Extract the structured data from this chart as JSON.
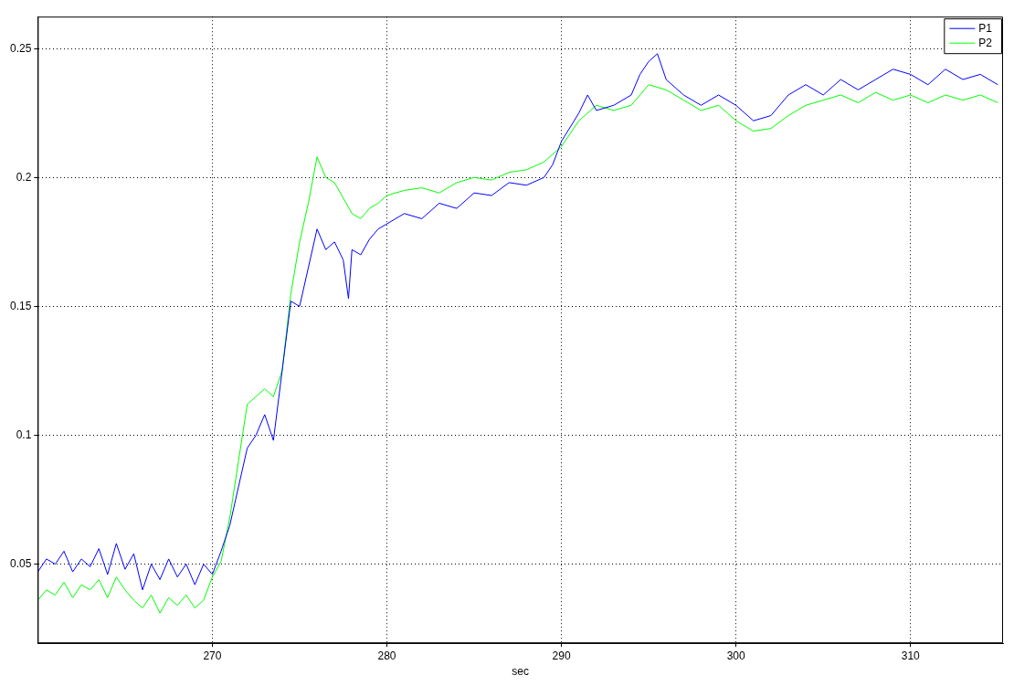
{
  "chart_data": {
    "type": "line",
    "xlabel": "sec",
    "xlim": [
      260,
      315.3
    ],
    "xticks": [
      270,
      280,
      290,
      300,
      310
    ],
    "ylim": [
      0.0193,
      0.2624
    ],
    "yticks": [
      0.05,
      0.1,
      0.15,
      0.2,
      0.25
    ],
    "grid": true,
    "legend": "top right",
    "marker": "none",
    "line_style": "solid",
    "series": [
      {
        "name": "P1",
        "color": "#0000ff",
        "x": [
          260,
          260.5,
          261,
          261.5,
          262,
          262.5,
          263,
          263.5,
          264,
          264.5,
          265,
          265.5,
          266,
          266.5,
          267,
          267.5,
          268,
          268.5,
          269,
          269.5,
          270,
          270.5,
          271,
          271.5,
          272,
          272.5,
          273,
          273.5,
          274,
          274.5,
          275,
          275.5,
          276,
          276.5,
          277,
          277.5,
          277.8,
          278,
          278.5,
          279,
          279.5,
          280,
          281,
          282,
          283,
          284,
          285,
          286,
          287,
          288,
          289,
          289.5,
          290,
          291,
          291.5,
          292,
          293,
          294,
          294.5,
          295,
          295.5,
          296,
          297,
          298,
          299,
          300,
          301,
          302,
          303,
          304,
          305,
          306,
          307,
          308,
          309,
          310,
          311,
          312,
          313,
          314,
          315
        ],
        "values": [
          0.047,
          0.052,
          0.05,
          0.055,
          0.047,
          0.052,
          0.049,
          0.056,
          0.046,
          0.058,
          0.048,
          0.054,
          0.04,
          0.05,
          0.044,
          0.052,
          0.045,
          0.05,
          0.042,
          0.05,
          0.046,
          0.055,
          0.065,
          0.08,
          0.095,
          0.1,
          0.108,
          0.098,
          0.125,
          0.152,
          0.15,
          0.165,
          0.18,
          0.172,
          0.175,
          0.168,
          0.153,
          0.172,
          0.17,
          0.176,
          0.18,
          0.182,
          0.186,
          0.184,
          0.19,
          0.188,
          0.194,
          0.193,
          0.198,
          0.197,
          0.2,
          0.205,
          0.214,
          0.225,
          0.232,
          0.226,
          0.228,
          0.232,
          0.24,
          0.245,
          0.248,
          0.238,
          0.232,
          0.228,
          0.232,
          0.228,
          0.222,
          0.224,
          0.232,
          0.236,
          0.232,
          0.238,
          0.234,
          0.238,
          0.242,
          0.24,
          0.236,
          0.242,
          0.238,
          0.24,
          0.236
        ]
      },
      {
        "name": "P2",
        "color": "#00ff00",
        "x": [
          260,
          260.5,
          261,
          261.5,
          262,
          262.5,
          263,
          263.5,
          264,
          264.5,
          265,
          265.5,
          266,
          266.5,
          267,
          267.5,
          268,
          268.5,
          269,
          269.5,
          270,
          270.5,
          271,
          271.5,
          272,
          272.5,
          273,
          273.5,
          274,
          274.5,
          275,
          275.5,
          276,
          276.5,
          277,
          277.5,
          278,
          278.5,
          279,
          279.5,
          280,
          281,
          282,
          283,
          284,
          285,
          286,
          287,
          288,
          289,
          290,
          291,
          292,
          293,
          294,
          295,
          296,
          297,
          298,
          299,
          300,
          301,
          302,
          303,
          304,
          305,
          306,
          307,
          308,
          309,
          310,
          311,
          312,
          313,
          314,
          315
        ],
        "values": [
          0.036,
          0.04,
          0.038,
          0.043,
          0.037,
          0.042,
          0.04,
          0.044,
          0.037,
          0.045,
          0.04,
          0.036,
          0.033,
          0.038,
          0.031,
          0.037,
          0.034,
          0.038,
          0.033,
          0.036,
          0.045,
          0.051,
          0.068,
          0.09,
          0.112,
          0.115,
          0.118,
          0.115,
          0.125,
          0.155,
          0.175,
          0.19,
          0.208,
          0.2,
          0.198,
          0.192,
          0.186,
          0.184,
          0.188,
          0.19,
          0.193,
          0.195,
          0.196,
          0.194,
          0.198,
          0.2,
          0.199,
          0.202,
          0.203,
          0.206,
          0.212,
          0.222,
          0.228,
          0.226,
          0.228,
          0.236,
          0.234,
          0.23,
          0.226,
          0.228,
          0.222,
          0.218,
          0.219,
          0.224,
          0.228,
          0.23,
          0.232,
          0.229,
          0.233,
          0.23,
          0.232,
          0.229,
          0.232,
          0.23,
          0.232,
          0.229
        ]
      }
    ]
  }
}
